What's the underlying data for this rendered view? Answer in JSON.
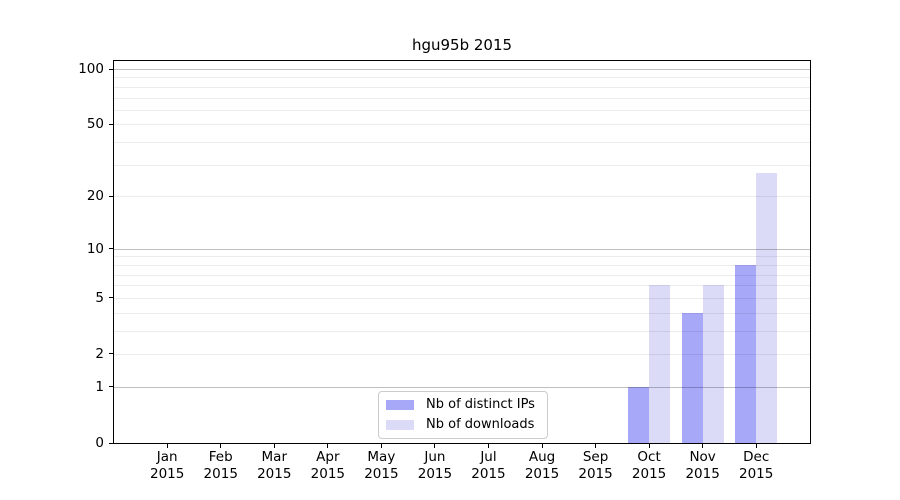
{
  "title": "hgu95b 2015",
  "chart_data": {
    "type": "bar",
    "title": "hgu95b 2015",
    "categories": [
      "Jan",
      "Feb",
      "Mar",
      "Apr",
      "May",
      "Jun",
      "Jul",
      "Aug",
      "Sep",
      "Oct",
      "Nov",
      "Dec"
    ],
    "xtick_year": "2015",
    "series": [
      {
        "name": "Nb of distinct IPs",
        "color": "#a8a8f8",
        "values": [
          0,
          0,
          0,
          0,
          0,
          0,
          0,
          0,
          0,
          1,
          4,
          8
        ]
      },
      {
        "name": "Nb of downloads",
        "color": "#dbdbf8",
        "values": [
          0,
          0,
          0,
          0,
          0,
          0,
          0,
          0,
          0,
          6,
          6,
          27
        ]
      }
    ],
    "yscale": "log1p",
    "ytick_labels": [
      0,
      1,
      2,
      5,
      10,
      20,
      50,
      100
    ],
    "ygrid_minor": [
      2,
      3,
      4,
      5,
      6,
      7,
      8,
      9,
      20,
      30,
      40,
      50,
      60,
      70,
      80,
      90
    ],
    "ygrid_major": [
      1,
      10,
      100
    ],
    "ylim": [
      0,
      110
    ],
    "grid": "horizontal",
    "legend_position": "lower center",
    "colors": {
      "axis": "#000000",
      "grid_minor": "#ececec",
      "grid_major": "#bfbfbf"
    }
  }
}
